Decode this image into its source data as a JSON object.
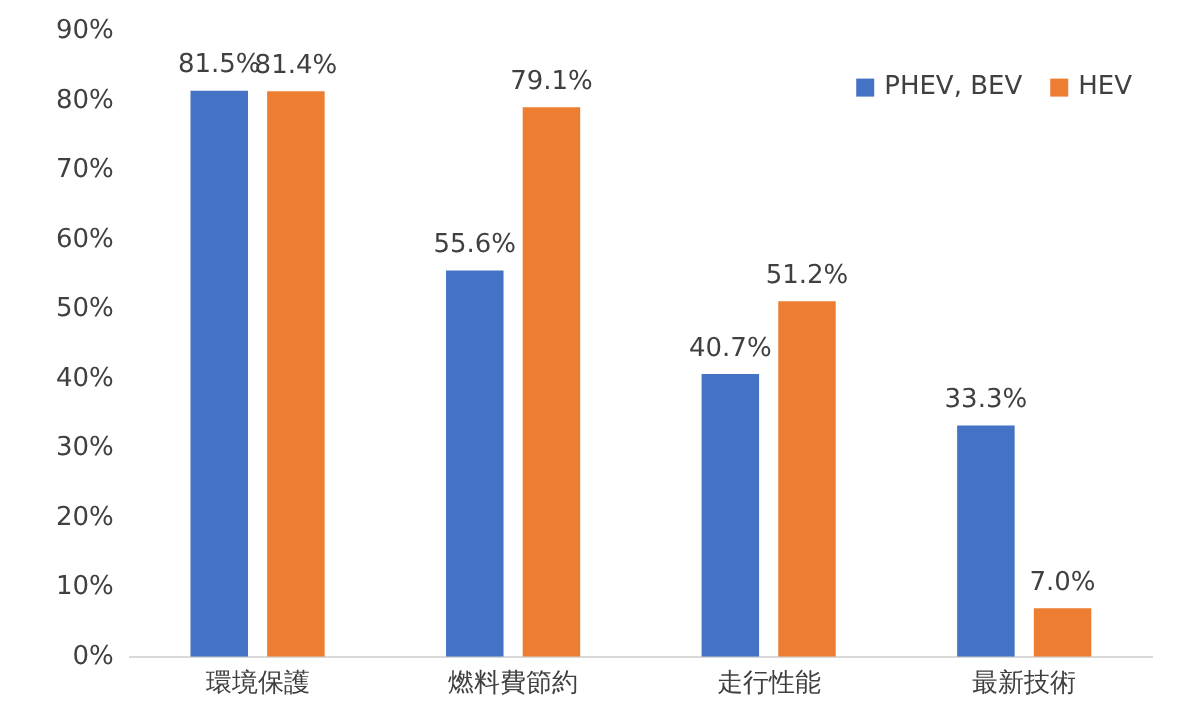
{
  "chart_data": {
    "type": "bar",
    "categories": [
      "環境保護",
      "燃料費節約",
      "走行性能",
      "最新技術"
    ],
    "series": [
      {
        "name": "PHEV, BEV",
        "color": "#4472c4",
        "values": [
          81.5,
          55.6,
          40.7,
          33.3
        ],
        "value_labels": [
          "81.5%",
          "55.6%",
          "40.7%",
          "33.3%"
        ]
      },
      {
        "name": "HEV",
        "color": "#ed7d31",
        "values": [
          81.4,
          79.1,
          51.2,
          7.0
        ],
        "value_labels": [
          "81.4%",
          "79.1%",
          "51.2%",
          "7.0%"
        ]
      }
    ],
    "ylim": [
      0,
      90
    ],
    "yticks": [
      {
        "value": 0,
        "label": "0%"
      },
      {
        "value": 10,
        "label": "10%"
      },
      {
        "value": 20,
        "label": "20%"
      },
      {
        "value": 30,
        "label": "30%"
      },
      {
        "value": 40,
        "label": "40%"
      },
      {
        "value": 50,
        "label": "50%"
      },
      {
        "value": 60,
        "label": "60%"
      },
      {
        "value": 70,
        "label": "70%"
      },
      {
        "value": 80,
        "label": "80%"
      },
      {
        "value": 90,
        "label": "90%"
      }
    ],
    "grid": false,
    "legend": "top right"
  }
}
